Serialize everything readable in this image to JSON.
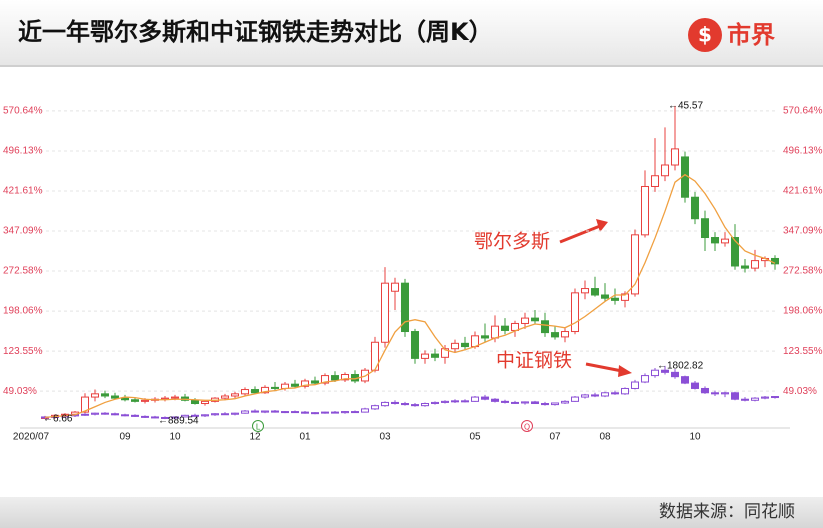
{
  "header": {
    "title": "近一年鄂尔多斯和中证钢铁走势对比（周K）",
    "logo": "市界"
  },
  "footer": {
    "source": "数据来源：同花顺"
  },
  "chart_data": {
    "type": "candlestick",
    "categories": [
      "2020/07",
      null,
      null,
      null,
      null,
      null,
      null,
      null,
      "09",
      null,
      null,
      null,
      null,
      "10",
      null,
      null,
      null,
      null,
      null,
      null,
      null,
      "12",
      null,
      null,
      null,
      null,
      "01",
      null,
      null,
      null,
      null,
      null,
      null,
      null,
      "03",
      null,
      null,
      null,
      null,
      null,
      null,
      null,
      null,
      "05",
      null,
      null,
      null,
      null,
      null,
      null,
      null,
      "07",
      null,
      null,
      null,
      null,
      "08",
      null,
      null,
      null,
      null,
      null,
      null,
      null,
      null,
      "10",
      null,
      null,
      null,
      null,
      null,
      null,
      null,
      null
    ],
    "ylim": [
      -14,
      591
    ],
    "yticks": [
      {
        "value": 49.03,
        "label": "49.03%"
      },
      {
        "value": 123.55,
        "label": "123.55%"
      },
      {
        "value": 198.06,
        "label": "198.06%"
      },
      {
        "value": 272.58,
        "label": "272.58%"
      },
      {
        "value": 347.09,
        "label": "347.09%"
      },
      {
        "value": 421.61,
        "label": "421.61%"
      },
      {
        "value": 496.13,
        "label": "496.13%"
      },
      {
        "value": 570.64,
        "label": "570.64%"
      }
    ],
    "grid": true,
    "series": [
      {
        "name": "鄂尔多斯",
        "up_color": "#e8413f",
        "down_color": "#3b9b3b",
        "ohlc": [
          [
            0,
            3,
            -3,
            0
          ],
          [
            0,
            6,
            -2,
            4
          ],
          [
            4,
            8,
            2,
            6
          ],
          [
            6,
            12,
            4,
            10
          ],
          [
            10,
            45,
            8,
            38
          ],
          [
            38,
            52,
            30,
            44
          ],
          [
            44,
            50,
            36,
            40
          ],
          [
            40,
            46,
            34,
            36
          ],
          [
            36,
            42,
            30,
            33
          ],
          [
            33,
            38,
            28,
            30
          ],
          [
            30,
            36,
            26,
            32
          ],
          [
            32,
            38,
            28,
            34
          ],
          [
            34,
            40,
            30,
            36
          ],
          [
            36,
            42,
            32,
            38
          ],
          [
            38,
            44,
            30,
            32
          ],
          [
            32,
            36,
            24,
            26
          ],
          [
            26,
            32,
            22,
            30
          ],
          [
            30,
            38,
            28,
            36
          ],
          [
            36,
            44,
            32,
            40
          ],
          [
            40,
            48,
            36,
            44
          ],
          [
            44,
            56,
            40,
            52
          ],
          [
            52,
            58,
            44,
            46
          ],
          [
            46,
            60,
            44,
            56
          ],
          [
            56,
            66,
            50,
            54
          ],
          [
            54,
            66,
            50,
            62
          ],
          [
            62,
            70,
            56,
            58
          ],
          [
            58,
            72,
            54,
            68
          ],
          [
            68,
            76,
            62,
            64
          ],
          [
            64,
            82,
            60,
            78
          ],
          [
            78,
            86,
            66,
            70
          ],
          [
            70,
            84,
            66,
            80
          ],
          [
            80,
            88,
            64,
            68
          ],
          [
            68,
            92,
            64,
            88
          ],
          [
            88,
            150,
            84,
            140
          ],
          [
            140,
            280,
            130,
            250
          ],
          [
            235,
            260,
            200,
            250
          ],
          [
            250,
            258,
            150,
            160
          ],
          [
            160,
            165,
            100,
            110
          ],
          [
            110,
            125,
            100,
            118
          ],
          [
            118,
            128,
            105,
            112
          ],
          [
            112,
            135,
            100,
            128
          ],
          [
            128,
            145,
            120,
            138
          ],
          [
            138,
            150,
            125,
            132
          ],
          [
            132,
            160,
            128,
            152
          ],
          [
            152,
            175,
            140,
            148
          ],
          [
            148,
            190,
            140,
            170
          ],
          [
            170,
            185,
            155,
            162
          ],
          [
            162,
            180,
            150,
            175
          ],
          [
            175,
            195,
            165,
            185
          ],
          [
            185,
            200,
            175,
            180
          ],
          [
            180,
            195,
            150,
            158
          ],
          [
            158,
            170,
            145,
            150
          ],
          [
            150,
            168,
            140,
            160
          ],
          [
            160,
            240,
            155,
            232
          ],
          [
            232,
            255,
            220,
            240
          ],
          [
            240,
            262,
            225,
            228
          ],
          [
            228,
            250,
            215,
            222
          ],
          [
            222,
            240,
            210,
            218
          ],
          [
            218,
            235,
            205,
            230
          ],
          [
            230,
            350,
            225,
            340
          ],
          [
            340,
            460,
            335,
            430
          ],
          [
            430,
            520,
            420,
            450
          ],
          [
            450,
            540,
            440,
            470
          ],
          [
            470,
            580,
            460,
            500
          ],
          [
            485,
            495,
            400,
            410
          ],
          [
            410,
            420,
            360,
            370
          ],
          [
            370,
            385,
            310,
            335
          ],
          [
            335,
            345,
            310,
            325
          ],
          [
            325,
            345,
            318,
            332
          ],
          [
            335,
            360,
            275,
            282
          ],
          [
            282,
            295,
            270,
            278
          ],
          [
            278,
            312,
            272,
            292
          ],
          [
            292,
            300,
            280,
            296
          ],
          [
            296,
            302,
            275,
            286
          ]
        ]
      },
      {
        "name": "中证钢铁",
        "up_color": "#8b4fd6",
        "down_color": "#8b4fd6",
        "ohlc": [
          [
            0,
            2,
            -2,
            1
          ],
          [
            1,
            3,
            -1,
            2
          ],
          [
            2,
            4,
            0,
            3
          ],
          [
            3,
            6,
            1,
            5
          ],
          [
            5,
            8,
            3,
            6
          ],
          [
            6,
            9,
            4,
            8
          ],
          [
            8,
            10,
            5,
            7
          ],
          [
            7,
            9,
            4,
            5
          ],
          [
            5,
            7,
            2,
            4
          ],
          [
            4,
            6,
            1,
            2
          ],
          [
            2,
            4,
            -1,
            1
          ],
          [
            1,
            3,
            -2,
            0
          ],
          [
            0,
            2,
            -3,
            -1
          ],
          [
            -1,
            2,
            -3,
            1
          ],
          [
            1,
            5,
            0,
            4
          ],
          [
            4,
            7,
            2,
            3
          ],
          [
            3,
            6,
            1,
            5
          ],
          [
            5,
            8,
            3,
            7
          ],
          [
            7,
            10,
            5,
            6
          ],
          [
            6,
            9,
            4,
            8
          ],
          [
            8,
            14,
            7,
            12
          ],
          [
            12,
            15,
            9,
            10
          ],
          [
            10,
            13,
            8,
            12
          ],
          [
            12,
            14,
            9,
            10
          ],
          [
            10,
            12,
            8,
            11
          ],
          [
            11,
            13,
            9,
            10
          ],
          [
            10,
            12,
            7,
            8
          ],
          [
            8,
            10,
            6,
            9
          ],
          [
            9,
            11,
            7,
            10
          ],
          [
            10,
            12,
            8,
            9
          ],
          [
            9,
            12,
            7,
            11
          ],
          [
            11,
            13,
            9,
            10
          ],
          [
            10,
            18,
            9,
            16
          ],
          [
            16,
            24,
            14,
            22
          ],
          [
            22,
            30,
            20,
            28
          ],
          [
            28,
            32,
            24,
            26
          ],
          [
            26,
            29,
            22,
            24
          ],
          [
            24,
            27,
            20,
            22
          ],
          [
            22,
            28,
            20,
            26
          ],
          [
            26,
            30,
            24,
            28
          ],
          [
            28,
            32,
            26,
            30
          ],
          [
            30,
            34,
            27,
            31
          ],
          [
            31,
            34,
            28,
            30
          ],
          [
            30,
            40,
            29,
            38
          ],
          [
            38,
            42,
            32,
            34
          ],
          [
            34,
            36,
            28,
            30
          ],
          [
            30,
            33,
            26,
            28
          ],
          [
            28,
            31,
            25,
            27
          ],
          [
            27,
            30,
            24,
            29
          ],
          [
            29,
            31,
            25,
            26
          ],
          [
            26,
            29,
            22,
            24
          ],
          [
            24,
            28,
            22,
            27
          ],
          [
            27,
            32,
            25,
            30
          ],
          [
            30,
            40,
            29,
            38
          ],
          [
            38,
            44,
            35,
            42
          ],
          [
            42,
            46,
            38,
            40
          ],
          [
            40,
            48,
            38,
            46
          ],
          [
            46,
            50,
            42,
            44
          ],
          [
            44,
            56,
            42,
            54
          ],
          [
            54,
            70,
            52,
            66
          ],
          [
            66,
            82,
            64,
            78
          ],
          [
            78,
            92,
            74,
            88
          ],
          [
            88,
            96,
            80,
            84
          ],
          [
            84,
            90,
            72,
            76
          ],
          [
            76,
            78,
            62,
            64
          ],
          [
            64,
            68,
            52,
            54
          ],
          [
            54,
            58,
            44,
            46
          ],
          [
            46,
            50,
            40,
            44
          ],
          [
            44,
            48,
            38,
            46
          ],
          [
            46,
            48,
            32,
            34
          ],
          [
            34,
            38,
            30,
            32
          ],
          [
            32,
            38,
            30,
            36
          ],
          [
            36,
            40,
            34,
            38
          ],
          [
            38,
            40,
            35,
            39
          ]
        ]
      }
    ],
    "ma_line": {
      "color": "#f0a040",
      "values": [
        0,
        2,
        3,
        5,
        12,
        20,
        28,
        34,
        38,
        37,
        34,
        33,
        33,
        34,
        34,
        33,
        32,
        32,
        33,
        35,
        40,
        44,
        48,
        50,
        54,
        55,
        60,
        61,
        66,
        68,
        72,
        72,
        77,
        89,
        125,
        159,
        178,
        182,
        178,
        150,
        126,
        121,
        126,
        132,
        140,
        148,
        153,
        161,
        168,
        174,
        172,
        170,
        167,
        176,
        188,
        202,
        216,
        228,
        228,
        248,
        288,
        334,
        384,
        438,
        452,
        440,
        417,
        388,
        354,
        329,
        310,
        302,
        296,
        287
      ]
    },
    "annotations": [
      {
        "text": "←45.57"
      },
      {
        "text": "←1802.82"
      },
      {
        "text": "←6.66"
      },
      {
        "text": "←889.54"
      }
    ],
    "markers": [
      {
        "label": "L"
      },
      {
        "label": "Q"
      }
    ]
  }
}
